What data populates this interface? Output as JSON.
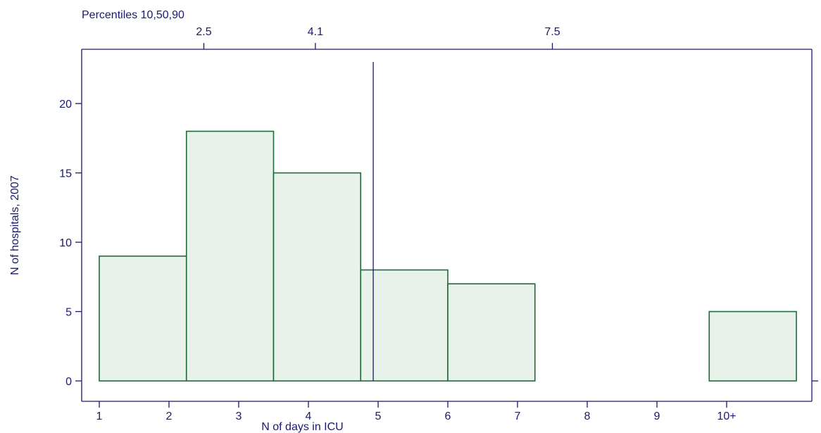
{
  "chart_data": {
    "type": "bar",
    "title": "",
    "xlabel": "N of days in ICU",
    "ylabel": "N of hospitals, 2007",
    "x_ticks": [
      "1",
      "2",
      "3",
      "4",
      "5",
      "6",
      "7",
      "8",
      "9",
      "10+"
    ],
    "xlim": [
      1,
      11
    ],
    "y_ticks": [
      "0",
      "5",
      "10",
      "15",
      "20"
    ],
    "ylim": [
      0,
      23
    ],
    "bins": [
      {
        "start": 1.0,
        "end": 2.25,
        "value": 9
      },
      {
        "start": 2.25,
        "end": 3.5,
        "value": 18
      },
      {
        "start": 3.5,
        "end": 4.75,
        "value": 15
      },
      {
        "start": 4.75,
        "end": 6.0,
        "value": 8
      },
      {
        "start": 6.0,
        "end": 7.25,
        "value": 7
      },
      {
        "start": 9.75,
        "end": 11.0,
        "value": 5
      }
    ],
    "reference_line": {
      "x": 4.93
    },
    "percentiles": {
      "label": "Percentiles 10,50,90",
      "marks": [
        {
          "label": "2.5",
          "x": 2.5
        },
        {
          "label": "4.1",
          "x": 4.1
        },
        {
          "label": "7.5",
          "x": 7.5
        }
      ]
    },
    "grid": false,
    "colors": {
      "axis": "#1a1a6e",
      "bar_fill": "#e8f2ea",
      "bar_stroke": "#1e6b3a"
    }
  }
}
